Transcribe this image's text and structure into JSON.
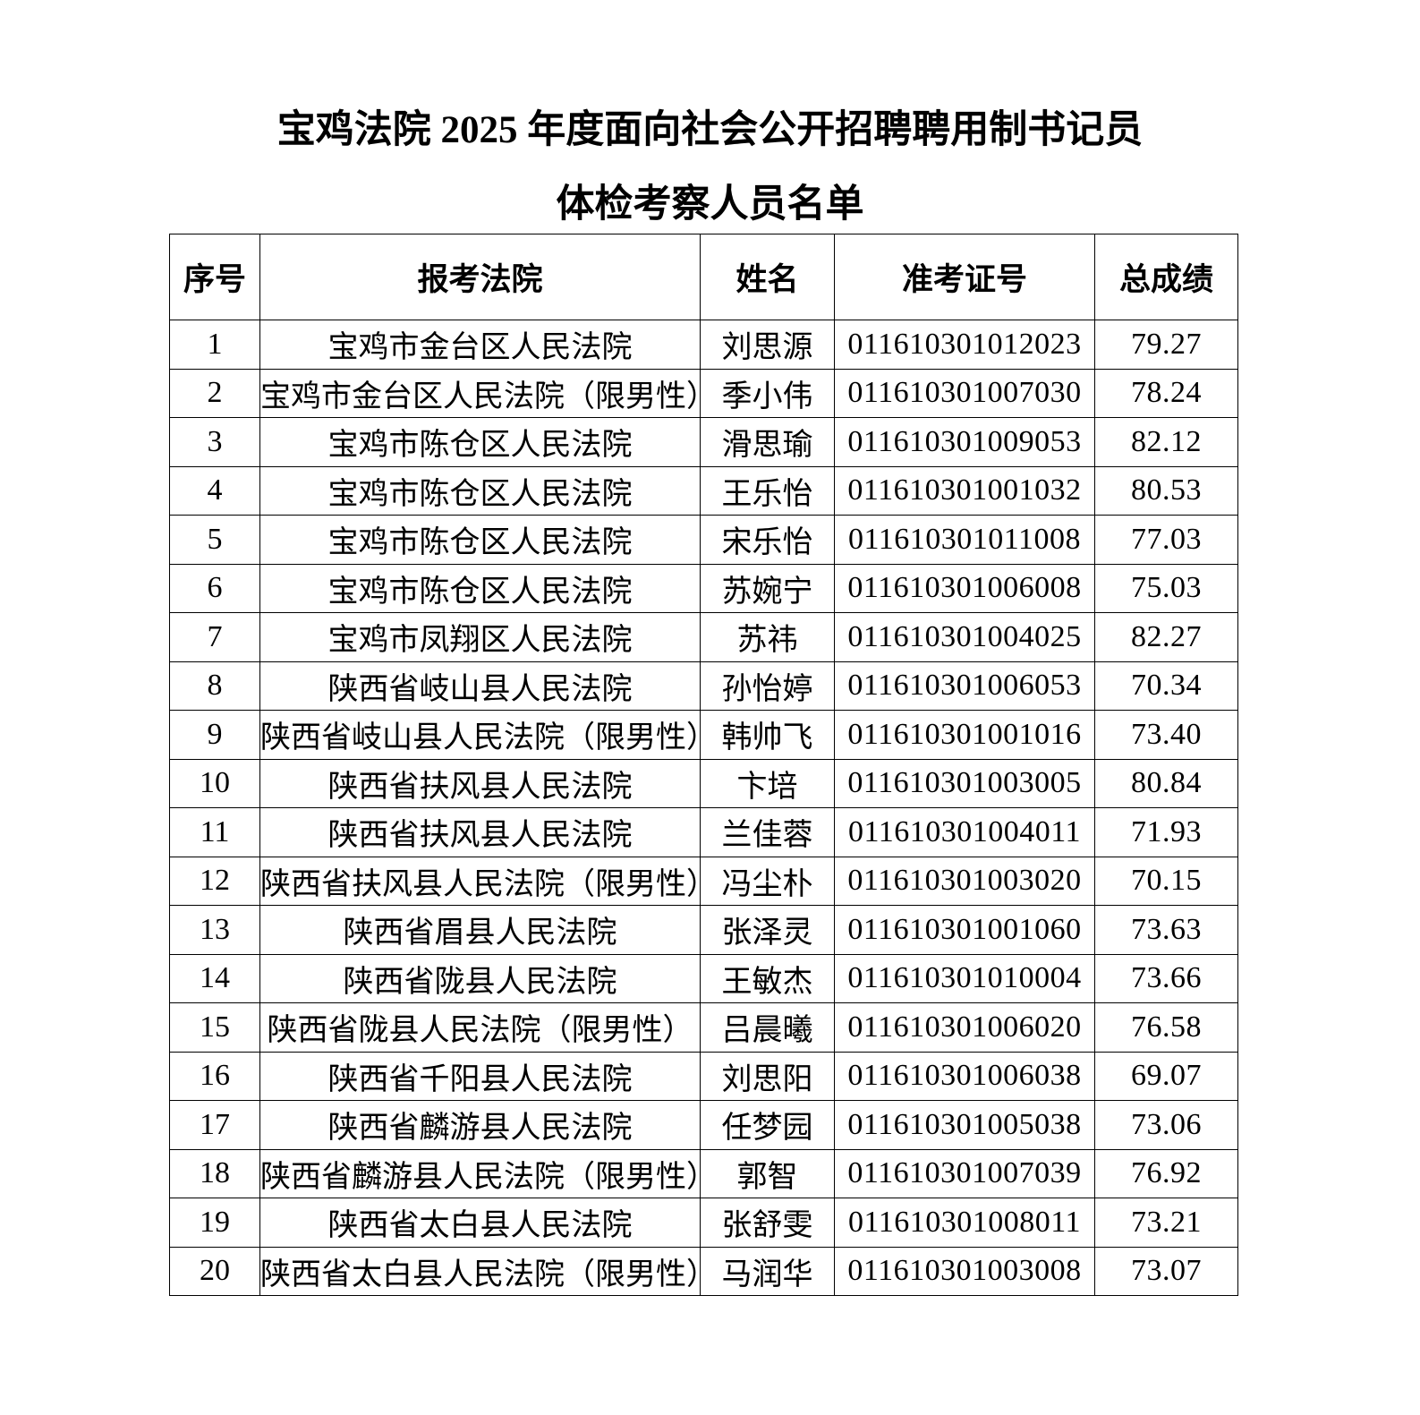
{
  "document": {
    "title_line1": "宝鸡法院 2025 年度面向社会公开招聘聘用制书记员",
    "title_line2": "体检考察人员名单"
  },
  "table": {
    "headers": [
      "序号",
      "报考法院",
      "姓名",
      "准考证号",
      "总成绩"
    ],
    "rows": [
      {
        "no": "1",
        "court": "宝鸡市金台区人民法院",
        "name": "刘思源",
        "admission_no": "011610301012023",
        "score": "79.27"
      },
      {
        "no": "2",
        "court": "宝鸡市金台区人民法院（限男性）",
        "name": "季小伟",
        "admission_no": "011610301007030",
        "score": "78.24"
      },
      {
        "no": "3",
        "court": "宝鸡市陈仓区人民法院",
        "name": "滑思瑜",
        "admission_no": "011610301009053",
        "score": "82.12"
      },
      {
        "no": "4",
        "court": "宝鸡市陈仓区人民法院",
        "name": "王乐怡",
        "admission_no": "011610301001032",
        "score": "80.53"
      },
      {
        "no": "5",
        "court": "宝鸡市陈仓区人民法院",
        "name": "宋乐怡",
        "admission_no": "011610301011008",
        "score": "77.03"
      },
      {
        "no": "6",
        "court": "宝鸡市陈仓区人民法院",
        "name": "苏婉宁",
        "admission_no": "011610301006008",
        "score": "75.03"
      },
      {
        "no": "7",
        "court": "宝鸡市凤翔区人民法院",
        "name": "苏祎",
        "admission_no": "011610301004025",
        "score": "82.27"
      },
      {
        "no": "8",
        "court": "陕西省岐山县人民法院",
        "name": "孙怡婷",
        "admission_no": "011610301006053",
        "score": "70.34"
      },
      {
        "no": "9",
        "court": "陕西省岐山县人民法院（限男性）",
        "name": "韩帅飞",
        "admission_no": "011610301001016",
        "score": "73.40"
      },
      {
        "no": "10",
        "court": "陕西省扶风县人民法院",
        "name": "卞培",
        "admission_no": "011610301003005",
        "score": "80.84"
      },
      {
        "no": "11",
        "court": "陕西省扶风县人民法院",
        "name": "兰佳蓉",
        "admission_no": "011610301004011",
        "score": "71.93"
      },
      {
        "no": "12",
        "court": "陕西省扶风县人民法院（限男性）",
        "name": "冯尘朴",
        "admission_no": "011610301003020",
        "score": "70.15"
      },
      {
        "no": "13",
        "court": "陕西省眉县人民法院",
        "name": "张泽灵",
        "admission_no": "011610301001060",
        "score": "73.63"
      },
      {
        "no": "14",
        "court": "陕西省陇县人民法院",
        "name": "王敏杰",
        "admission_no": "011610301010004",
        "score": "73.66"
      },
      {
        "no": "15",
        "court": "陕西省陇县人民法院（限男性）",
        "name": "吕晨曦",
        "admission_no": "011610301006020",
        "score": "76.58"
      },
      {
        "no": "16",
        "court": "陕西省千阳县人民法院",
        "name": "刘思阳",
        "admission_no": "011610301006038",
        "score": "69.07"
      },
      {
        "no": "17",
        "court": "陕西省麟游县人民法院",
        "name": "任梦园",
        "admission_no": "011610301005038",
        "score": "73.06"
      },
      {
        "no": "18",
        "court": "陕西省麟游县人民法院（限男性）",
        "name": "郭智",
        "admission_no": "011610301007039",
        "score": "76.92"
      },
      {
        "no": "19",
        "court": "陕西省太白县人民法院",
        "name": "张舒雯",
        "admission_no": "011610301008011",
        "score": "73.21"
      },
      {
        "no": "20",
        "court": "陕西省太白县人民法院（限男性）",
        "name": "马润华",
        "admission_no": "011610301003008",
        "score": "73.07"
      }
    ]
  }
}
